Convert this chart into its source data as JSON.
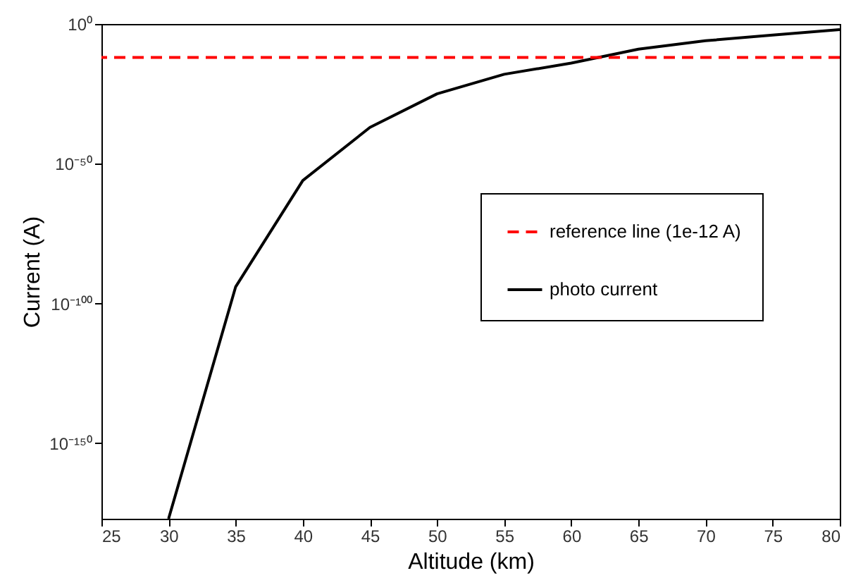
{
  "chart_data": {
    "type": "line",
    "xlabel": "Altitude (km)",
    "ylabel": "Current (A)",
    "log": "y",
    "x": [
      30,
      35,
      40,
      45,
      50,
      55,
      60,
      65,
      70,
      75,
      80
    ],
    "series": [
      {
        "name": "photo current",
        "color": "#000000",
        "values": [
          1e-177,
          1e-94,
          1e-56,
          1e-37,
          1e-25,
          1e-18,
          1e-14,
          1e-09,
          1e-06,
          0.0001,
          0.01
        ]
      }
    ],
    "ref_lines": [
      {
        "axis": "y",
        "value": 1e-12,
        "label": "reference line (1e-12 A)",
        "color": "#ff0000",
        "line_style": "dashed"
      }
    ],
    "xlim": [
      25,
      80
    ],
    "xticks": [
      25,
      30,
      35,
      40,
      45,
      50,
      55,
      60,
      65,
      70,
      75,
      80
    ],
    "ylim": [
      1e-177,
      1
    ],
    "yticks": [
      {
        "value": 1,
        "label": "10⁰"
      },
      {
        "value": 1e-50,
        "label": "10⁻⁵⁰"
      },
      {
        "value": 1e-100,
        "label": "10⁻¹⁰⁰"
      },
      {
        "value": 1e-150,
        "label": "10⁻¹⁵⁰"
      }
    ],
    "legend": "right",
    "grid": false,
    "line_style": "solid",
    "marker": "none"
  }
}
